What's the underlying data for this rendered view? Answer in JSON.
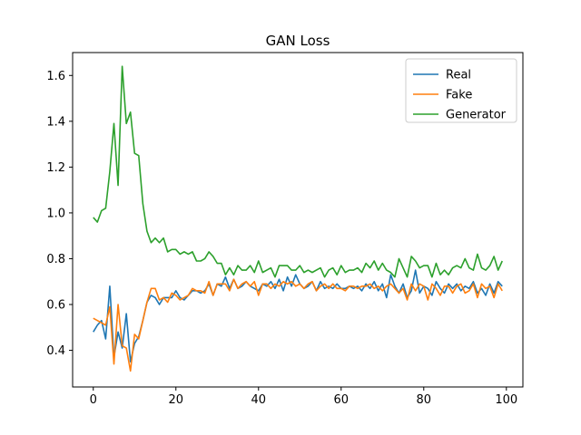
{
  "chart_data": {
    "type": "line",
    "title": "GAN Loss",
    "xlabel": "",
    "ylabel": "",
    "xlim": [
      -5,
      104
    ],
    "ylim": [
      0.24,
      1.7
    ],
    "xticks": [
      0,
      20,
      40,
      60,
      80,
      100
    ],
    "yticks": [
      0.4,
      0.6,
      0.8,
      1.0,
      1.2,
      1.4,
      1.6
    ],
    "xtick_labels": [
      "0",
      "20",
      "40",
      "60",
      "80",
      "100"
    ],
    "ytick_labels": [
      "0.4",
      "0.6",
      "0.8",
      "1.0",
      "1.2",
      "1.4",
      "1.6"
    ],
    "grid": false,
    "legend_position": "top-right",
    "x": [
      0,
      1,
      2,
      3,
      4,
      5,
      6,
      7,
      8,
      9,
      10,
      11,
      12,
      13,
      14,
      15,
      16,
      17,
      18,
      19,
      20,
      21,
      22,
      23,
      24,
      25,
      26,
      27,
      28,
      29,
      30,
      31,
      32,
      33,
      34,
      35,
      36,
      37,
      38,
      39,
      40,
      41,
      42,
      43,
      44,
      45,
      46,
      47,
      48,
      49,
      50,
      51,
      52,
      53,
      54,
      55,
      56,
      57,
      58,
      59,
      60,
      61,
      62,
      63,
      64,
      65,
      66,
      67,
      68,
      69,
      70,
      71,
      72,
      73,
      74,
      75,
      76,
      77,
      78,
      79,
      80,
      81,
      82,
      83,
      84,
      85,
      86,
      87,
      88,
      89,
      90,
      91,
      92,
      93,
      94,
      95,
      96,
      97,
      98,
      99
    ],
    "series": [
      {
        "name": "Real",
        "color": "#1f77b4",
        "values": [
          0.48,
          0.51,
          0.53,
          0.45,
          0.68,
          0.37,
          0.48,
          0.41,
          0.56,
          0.35,
          0.43,
          0.46,
          0.53,
          0.61,
          0.64,
          0.63,
          0.6,
          0.63,
          0.63,
          0.63,
          0.66,
          0.63,
          0.62,
          0.64,
          0.66,
          0.66,
          0.65,
          0.66,
          0.69,
          0.64,
          0.69,
          0.68,
          0.72,
          0.67,
          0.71,
          0.67,
          0.68,
          0.7,
          0.68,
          0.67,
          0.66,
          0.69,
          0.68,
          0.7,
          0.67,
          0.71,
          0.66,
          0.72,
          0.68,
          0.73,
          0.69,
          0.67,
          0.68,
          0.7,
          0.66,
          0.7,
          0.67,
          0.68,
          0.67,
          0.69,
          0.67,
          0.67,
          0.68,
          0.67,
          0.68,
          0.66,
          0.69,
          0.67,
          0.7,
          0.66,
          0.69,
          0.63,
          0.73,
          0.68,
          0.65,
          0.69,
          0.63,
          0.66,
          0.75,
          0.65,
          0.68,
          0.67,
          0.64,
          0.7,
          0.67,
          0.65,
          0.69,
          0.67,
          0.69,
          0.66,
          0.68,
          0.67,
          0.7,
          0.65,
          0.67,
          0.64,
          0.69,
          0.65,
          0.7,
          0.68
        ]
      },
      {
        "name": "Fake",
        "color": "#ff7f0e",
        "values": [
          0.54,
          0.53,
          0.52,
          0.51,
          0.59,
          0.34,
          0.6,
          0.42,
          0.41,
          0.31,
          0.47,
          0.45,
          0.53,
          0.61,
          0.67,
          0.67,
          0.62,
          0.63,
          0.61,
          0.65,
          0.64,
          0.62,
          0.63,
          0.64,
          0.67,
          0.66,
          0.66,
          0.65,
          0.7,
          0.64,
          0.69,
          0.69,
          0.69,
          0.66,
          0.71,
          0.67,
          0.69,
          0.7,
          0.68,
          0.7,
          0.64,
          0.69,
          0.69,
          0.67,
          0.69,
          0.68,
          0.7,
          0.69,
          0.7,
          0.68,
          0.69,
          0.67,
          0.69,
          0.7,
          0.66,
          0.68,
          0.69,
          0.67,
          0.69,
          0.67,
          0.67,
          0.66,
          0.68,
          0.68,
          0.67,
          0.68,
          0.68,
          0.69,
          0.67,
          0.68,
          0.66,
          0.68,
          0.69,
          0.67,
          0.65,
          0.67,
          0.62,
          0.69,
          0.66,
          0.69,
          0.68,
          0.62,
          0.69,
          0.67,
          0.64,
          0.68,
          0.68,
          0.65,
          0.68,
          0.69,
          0.65,
          0.66,
          0.69,
          0.63,
          0.69,
          0.67,
          0.68,
          0.63,
          0.69,
          0.66
        ]
      },
      {
        "name": "Generator",
        "color": "#2ca02c",
        "values": [
          0.98,
          0.96,
          1.01,
          1.02,
          1.18,
          1.39,
          1.12,
          1.64,
          1.39,
          1.44,
          1.26,
          1.25,
          1.04,
          0.92,
          0.87,
          0.89,
          0.87,
          0.89,
          0.83,
          0.84,
          0.84,
          0.82,
          0.83,
          0.82,
          0.83,
          0.79,
          0.79,
          0.8,
          0.83,
          0.81,
          0.78,
          0.78,
          0.73,
          0.76,
          0.73,
          0.77,
          0.75,
          0.75,
          0.77,
          0.74,
          0.79,
          0.74,
          0.75,
          0.76,
          0.72,
          0.77,
          0.77,
          0.77,
          0.75,
          0.75,
          0.77,
          0.74,
          0.75,
          0.74,
          0.75,
          0.76,
          0.72,
          0.75,
          0.76,
          0.73,
          0.77,
          0.74,
          0.75,
          0.75,
          0.76,
          0.74,
          0.78,
          0.76,
          0.79,
          0.75,
          0.78,
          0.75,
          0.74,
          0.72,
          0.8,
          0.76,
          0.72,
          0.81,
          0.79,
          0.76,
          0.77,
          0.77,
          0.72,
          0.78,
          0.73,
          0.75,
          0.73,
          0.76,
          0.77,
          0.76,
          0.8,
          0.76,
          0.75,
          0.82,
          0.76,
          0.75,
          0.77,
          0.81,
          0.75,
          0.79
        ]
      }
    ]
  }
}
